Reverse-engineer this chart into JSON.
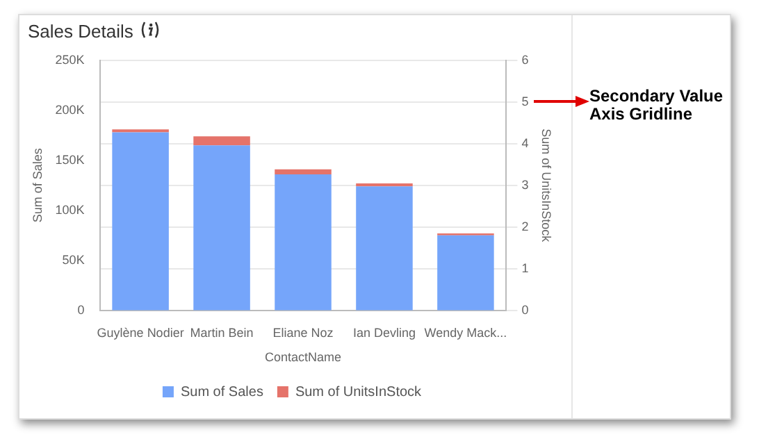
{
  "chart_data": {
    "type": "bar",
    "title": "Sales Details",
    "xlabel": "ContactName",
    "ylabel": "Sum of Sales",
    "y2label": "Sum of UnitsInStock",
    "categories": [
      "Guylène Nodier",
      "Martin Bein",
      "Eliane Noz",
      "Ian Devling",
      "Wendy Mack..."
    ],
    "series": [
      {
        "name": "Sum of Sales",
        "color": "#75a5fa",
        "values": [
          178000,
          165000,
          136000,
          124000,
          75000
        ]
      },
      {
        "name": "Sum of UnitsInStock",
        "color": "#e5736a",
        "values": [
          3000,
          9000,
          5000,
          3000,
          2000
        ]
      }
    ],
    "stacked": true,
    "ylim": [
      0,
      250000
    ],
    "yticks": [
      {
        "value": 0,
        "label": "0"
      },
      {
        "value": 50000,
        "label": "50K"
      },
      {
        "value": 100000,
        "label": "100K"
      },
      {
        "value": 150000,
        "label": "150K"
      },
      {
        "value": 200000,
        "label": "200K"
      },
      {
        "value": 250000,
        "label": "250K"
      }
    ],
    "y2lim": [
      0,
      6
    ],
    "y2ticks": [
      0,
      1,
      2,
      3,
      4,
      5,
      6
    ],
    "grid": "y2",
    "legend": "bottom",
    "annotations": [
      "Secondary Value Axis Gridline"
    ]
  }
}
